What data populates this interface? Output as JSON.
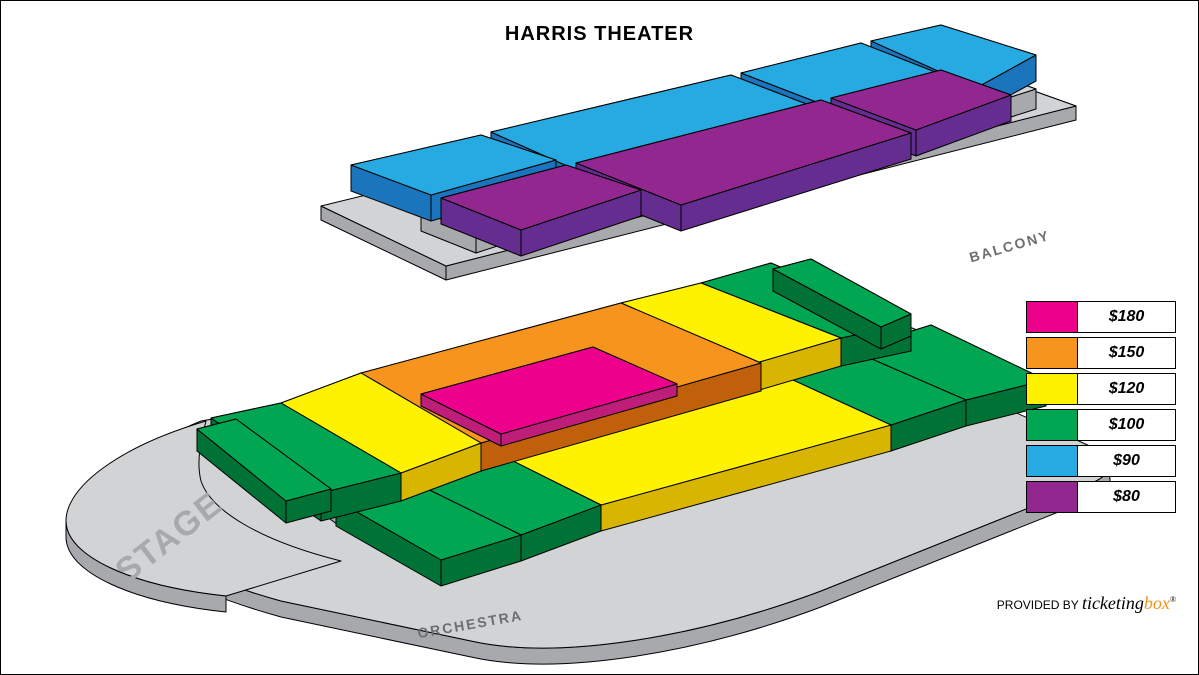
{
  "title": "HARRIS THEATER",
  "labels": {
    "stage": "STAGE",
    "orchestra": "ORCHESTRA",
    "balcony": "BALCONY"
  },
  "legend": [
    {
      "price": "$180",
      "color": "#ec008c"
    },
    {
      "price": "$150",
      "color": "#f7941d"
    },
    {
      "price": "$120",
      "color": "#fff200"
    },
    {
      "price": "$100",
      "color": "#00a651"
    },
    {
      "price": "$90",
      "color": "#27aae1"
    },
    {
      "price": "$80",
      "color": "#92278f"
    }
  ],
  "credit": {
    "prefix": "PROVIDED BY",
    "brand1": "ticketing",
    "brand2": "box"
  },
  "colors": {
    "grey_top": "#d1d3d4",
    "grey_side": "#a7a9ac",
    "grey_shadow": "#808285",
    "stroke": "#000000",
    "pink_top": "#ec008c",
    "pink_side": "#be1e79",
    "orange_top": "#f7941d",
    "orange_side": "#c1600b",
    "yellow_top": "#fff200",
    "yellow_side": "#d7b500",
    "green_top": "#00a651",
    "green_side": "#007236",
    "blue_top": "#27aae1",
    "blue_side": "#1b75bc",
    "purple_top": "#92278f",
    "purple_side": "#662d91"
  },
  "orchestra": {
    "bases": {
      "center": "360,400 620,330 760,390 480,470",
      "center_left": "280,430 360,400 480,470 400,500",
      "center_right": "620,330 700,310 840,365 755,390",
      "left": "210,445 280,430 400,500 320,520",
      "right": "700,310 770,290 910,350 840,365",
      "back_center": "490,475 770,395 890,450 600,530",
      "back_cleft": "408,505 490,475 600,530 520,560",
      "back_cright": "770,395 850,375 965,425 890,450",
      "back_left": "335,525 408,505 520,560 440,585",
      "back_right": "850,375 930,350 1045,405 965,425"
    },
    "tiers": {
      "$180": [
        "center_pink:420,405 592,358 676,395 500,445"
      ],
      "$150": [
        "center"
      ],
      "$120": [
        "center_left",
        "center_right",
        "back_center"
      ],
      "$100": [
        "left",
        "right",
        "back_cleft",
        "back_cright",
        "back_left",
        "back_right"
      ]
    }
  },
  "balcony": {
    "bases": {
      "front_left": "350,190 480,160 555,185 430,220",
      "front_center": "490,157 730,100 860,150 620,215",
      "front_right": "740,98  860,68  980,115 870,148",
      "front_far": "870,66 940,50 1035,80 975,113",
      "back_left": "440,223 565,190 640,215 520,255",
      "back_center": "575,188 820,125 910,158 680,230",
      "back_right": "830,123 940,95 1010,120 915,155"
    },
    "tiers": {
      "$90": [
        "front_left",
        "front_center",
        "front_right",
        "front_far"
      ],
      "$80": [
        "back_left",
        "back_center",
        "back_right"
      ]
    }
  },
  "extrude": 24
}
